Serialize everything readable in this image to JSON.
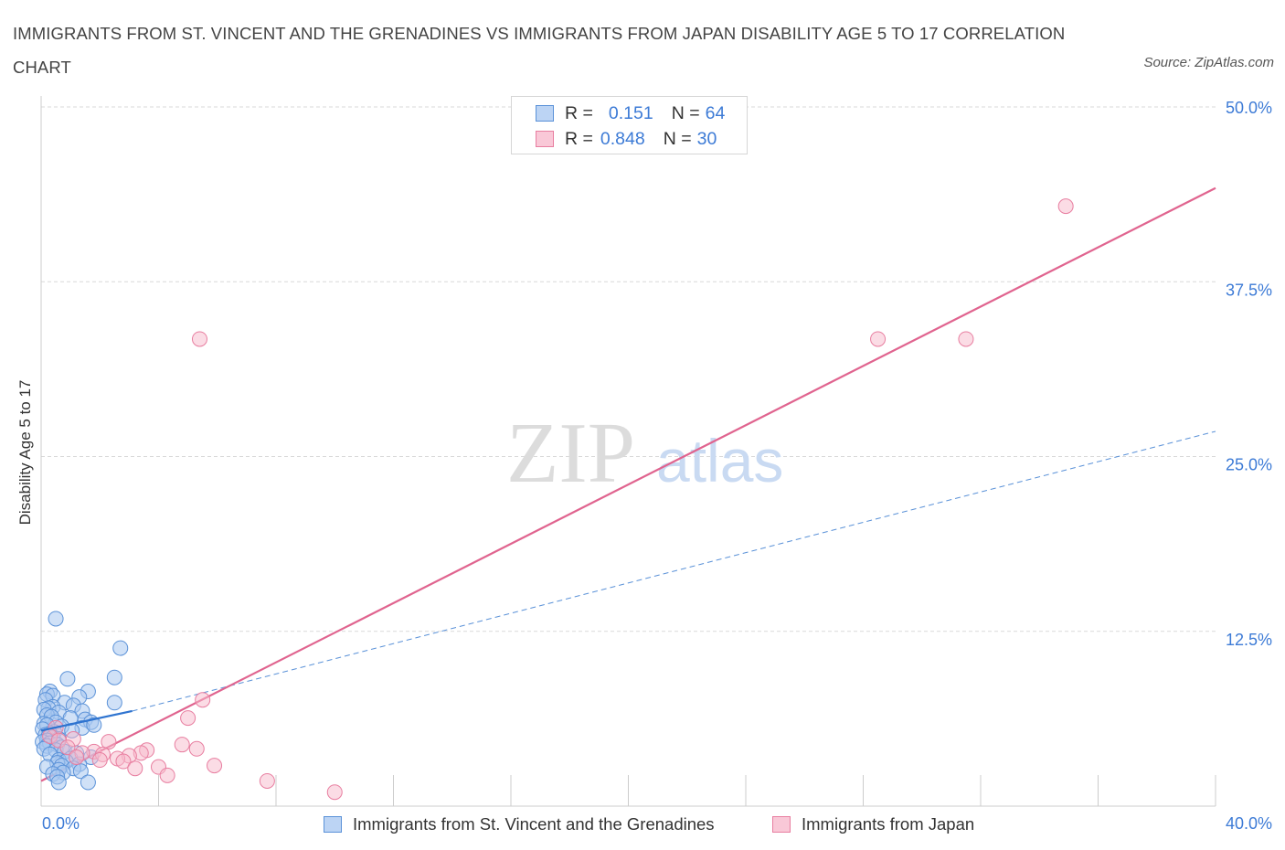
{
  "title": "IMMIGRANTS FROM ST. VINCENT AND THE GRENADINES VS IMMIGRANTS FROM JAPAN DISABILITY AGE 5 TO 17 CORRELATION CHART",
  "source": "Source: ZipAtlas.com",
  "watermark": {
    "zip": "ZIP",
    "atlas": "atlas"
  },
  "legend": {
    "series1": {
      "r_label": "R =",
      "r_value": "0.151",
      "n_label": "N =",
      "n_value": "64"
    },
    "series2": {
      "r_label": "R =",
      "r_value": "0.848",
      "n_label": "N =",
      "n_value": "30"
    }
  },
  "colors": {
    "blue_fill": "#a9c8f0",
    "blue_stroke": "#5b92d8",
    "blue_line": "#2f74d0",
    "pink_fill": "#f7b9cc",
    "pink_stroke": "#e87ea0",
    "pink_line": "#e0648f",
    "tick_label": "#3d7bd6",
    "grid": "#d9d9d9"
  },
  "chart_data": {
    "type": "scatter",
    "title": "IMMIGRANTS FROM ST. VINCENT AND THE GRENADINES VS IMMIGRANTS FROM JAPAN DISABILITY AGE 5 TO 17 CORRELATION CHART",
    "xlabel": "",
    "ylabel": "Disability Age 5 to 17",
    "xlim": [
      0,
      40
    ],
    "ylim": [
      0,
      50
    ],
    "x_tick_labels": [
      "0.0%",
      "40.0%"
    ],
    "y_ticks": [
      12.5,
      25.0,
      37.5,
      50.0
    ],
    "y_tick_labels": [
      "12.5%",
      "25.0%",
      "37.5%",
      "50.0%"
    ],
    "grid": true,
    "series": [
      {
        "name": "Immigrants from St. Vincent and the Grenadines",
        "r": 0.151,
        "n": 64,
        "trend_solid": {
          "x": [
            0.0,
            3.1
          ],
          "y": [
            5.4,
            6.8
          ]
        },
        "trend_dashed": {
          "x": [
            3.1,
            40.0
          ],
          "y": [
            6.8,
            26.8
          ]
        },
        "points": [
          [
            0.5,
            13.4
          ],
          [
            2.7,
            11.3
          ],
          [
            2.5,
            9.2
          ],
          [
            0.9,
            9.1
          ],
          [
            1.6,
            8.2
          ],
          [
            0.3,
            8.2
          ],
          [
            0.2,
            8.0
          ],
          [
            0.4,
            7.9
          ],
          [
            1.3,
            7.8
          ],
          [
            0.15,
            7.6
          ],
          [
            2.5,
            7.4
          ],
          [
            0.8,
            7.4
          ],
          [
            1.1,
            7.2
          ],
          [
            0.4,
            7.1
          ],
          [
            0.25,
            7.0
          ],
          [
            0.1,
            6.9
          ],
          [
            1.4,
            6.8
          ],
          [
            0.6,
            6.7
          ],
          [
            0.2,
            6.5
          ],
          [
            0.35,
            6.4
          ],
          [
            1.0,
            6.3
          ],
          [
            1.5,
            6.2
          ],
          [
            1.7,
            6.0
          ],
          [
            0.5,
            6.0
          ],
          [
            0.1,
            5.9
          ],
          [
            0.2,
            5.8
          ],
          [
            0.7,
            5.7
          ],
          [
            1.4,
            5.6
          ],
          [
            1.8,
            5.8
          ],
          [
            0.05,
            5.5
          ],
          [
            1.05,
            5.4
          ],
          [
            0.45,
            5.3
          ],
          [
            0.3,
            5.2
          ],
          [
            0.15,
            5.1
          ],
          [
            0.25,
            5.0
          ],
          [
            0.4,
            4.9
          ],
          [
            0.6,
            4.8
          ],
          [
            0.2,
            4.7
          ],
          [
            0.05,
            4.6
          ],
          [
            0.3,
            4.5
          ],
          [
            0.55,
            4.4
          ],
          [
            0.2,
            4.3
          ],
          [
            0.7,
            4.2
          ],
          [
            0.1,
            4.1
          ],
          [
            0.5,
            4.0
          ],
          [
            0.8,
            3.9
          ],
          [
            1.2,
            3.8
          ],
          [
            0.3,
            3.7
          ],
          [
            1.7,
            3.5
          ],
          [
            1.0,
            3.4
          ],
          [
            0.6,
            3.3
          ],
          [
            0.85,
            3.2
          ],
          [
            0.55,
            3.1
          ],
          [
            1.3,
            3.0
          ],
          [
            0.7,
            2.9
          ],
          [
            0.2,
            2.8
          ],
          [
            1.1,
            2.7
          ],
          [
            0.6,
            2.6
          ],
          [
            1.35,
            2.5
          ],
          [
            0.75,
            2.4
          ],
          [
            0.4,
            2.3
          ],
          [
            0.55,
            2.1
          ],
          [
            1.6,
            1.7
          ],
          [
            0.6,
            1.7
          ]
        ]
      },
      {
        "name": "Immigrants from Japan",
        "r": 0.848,
        "n": 30,
        "trend": {
          "x": [
            0.0,
            40.0
          ],
          "y": [
            1.8,
            44.2
          ]
        },
        "points": [
          [
            34.9,
            42.9
          ],
          [
            5.4,
            33.4
          ],
          [
            28.5,
            33.4
          ],
          [
            31.5,
            33.4
          ],
          [
            5.5,
            7.6
          ],
          [
            5.0,
            6.3
          ],
          [
            0.5,
            5.6
          ],
          [
            0.3,
            5.0
          ],
          [
            1.1,
            4.8
          ],
          [
            0.6,
            4.7
          ],
          [
            2.3,
            4.6
          ],
          [
            4.8,
            4.4
          ],
          [
            0.9,
            4.2
          ],
          [
            5.3,
            4.1
          ],
          [
            3.6,
            4.0
          ],
          [
            1.8,
            3.9
          ],
          [
            1.4,
            3.8
          ],
          [
            3.4,
            3.8
          ],
          [
            2.1,
            3.7
          ],
          [
            3.0,
            3.6
          ],
          [
            1.2,
            3.5
          ],
          [
            2.6,
            3.4
          ],
          [
            2.0,
            3.3
          ],
          [
            2.8,
            3.2
          ],
          [
            5.9,
            2.9
          ],
          [
            4.0,
            2.8
          ],
          [
            3.2,
            2.7
          ],
          [
            4.3,
            2.2
          ],
          [
            7.7,
            1.8
          ],
          [
            10.0,
            1.0
          ]
        ]
      }
    ]
  }
}
